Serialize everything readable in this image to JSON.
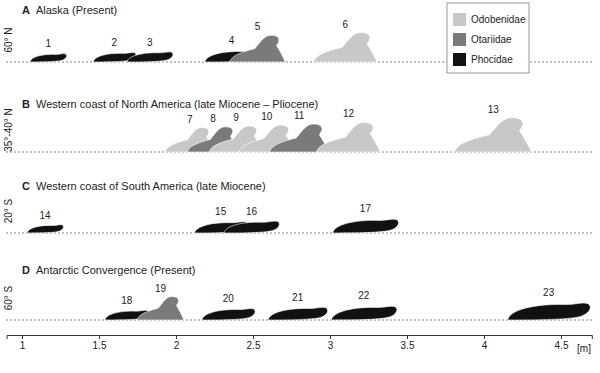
{
  "chart_data": {
    "type": "scatter",
    "x_label": "[m]",
    "xlim": [
      0.9,
      4.7
    ],
    "xticks": [
      1,
      1.5,
      2,
      2.5,
      3,
      3.5,
      4,
      4.5
    ],
    "legend": "top-right",
    "series": [
      {
        "name": "Odobenidae",
        "color": "#c8c8c8"
      },
      {
        "name": "Otariidae",
        "color": "#7a7a7a"
      },
      {
        "name": "Phocidae",
        "color": "#111111"
      }
    ],
    "panels": [
      {
        "letter": "A",
        "title": "Alaska (Present)",
        "latitude": "60° N",
        "labels": [
          "1",
          "2",
          "3",
          "4",
          "5",
          "6"
        ],
        "x": [
          1.17,
          1.6,
          1.83,
          2.36,
          2.53,
          3.1
        ],
        "groups": [
          "Phocidae",
          "Phocidae",
          "Phocidae",
          "Phocidae",
          "Otariidae",
          "Odobenidae"
        ]
      },
      {
        "letter": "B",
        "title": "Western coast of North America (late Miocene – Pliocene)",
        "latitude": "35°-40° N",
        "labels": [
          "7",
          "8",
          "9",
          "10",
          "11",
          "12",
          "13"
        ],
        "x": [
          2.09,
          2.24,
          2.39,
          2.59,
          2.8,
          3.12,
          4.06
        ],
        "groups": [
          "Odobenidae",
          "Otariidae",
          "Odobenidae",
          "Odobenidae",
          "Otariidae",
          "Odobenidae",
          "Odobenidae"
        ]
      },
      {
        "letter": "C",
        "title": "Western coast of South America (late Miocene)",
        "latitude": "20° S",
        "labels": [
          "14",
          "15",
          "16",
          "17"
        ],
        "x": [
          1.15,
          2.29,
          2.49,
          3.23
        ],
        "groups": [
          "Phocidae",
          "Phocidae",
          "Phocidae",
          "Phocidae"
        ]
      },
      {
        "letter": "D",
        "title": "Antarctic Convergence (Present)",
        "latitude": "60° S",
        "labels": [
          "18",
          "19",
          "20",
          "21",
          "22",
          "23"
        ],
        "x": [
          1.68,
          1.9,
          2.34,
          2.79,
          3.22,
          4.42
        ],
        "groups": [
          "Phocidae",
          "Otariidae",
          "Phocidae",
          "Phocidae",
          "Phocidae",
          "Phocidae"
        ]
      }
    ]
  }
}
